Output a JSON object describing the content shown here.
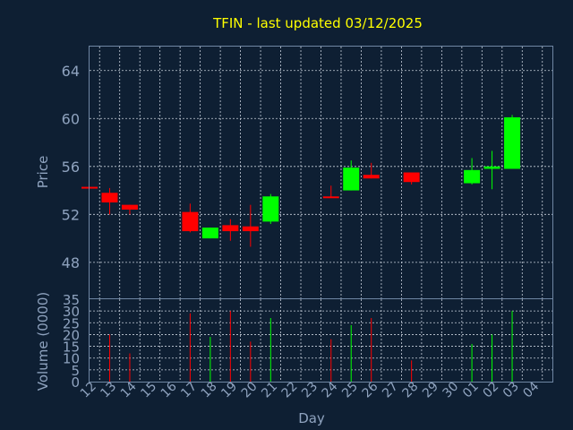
{
  "chart_data": {
    "type": "candlestick",
    "title": "TFIN - last updated 03/12/2025",
    "ylabel": "Price",
    "volume_label": "Volume (0000)",
    "xlabel": "Day",
    "price_ylim": [
      45,
      66
    ],
    "price_ticks": [
      48,
      52,
      56,
      60,
      64
    ],
    "volume_ylim": [
      0,
      35
    ],
    "volume_ticks": [
      0,
      5,
      10,
      15,
      20,
      25,
      30,
      35
    ],
    "grid": true,
    "colors": {
      "up": "#00ff00",
      "down": "#ff0000",
      "background": "#0e1f33",
      "title": "#ffff00",
      "text": "#8fa3bf"
    },
    "x_ticks": [
      "12",
      "13",
      "14",
      "15",
      "16",
      "17",
      "18",
      "19",
      "20",
      "21",
      "22",
      "23",
      "24",
      "25",
      "26",
      "27",
      "28",
      "29",
      "30",
      "01",
      "02",
      "03",
      "04"
    ],
    "candles": [
      {
        "day": "12",
        "open": 54.3,
        "high": 54.3,
        "low": 54.2,
        "close": 54.2,
        "volume": 0
      },
      {
        "day": "13",
        "open": 53.8,
        "high": 54.2,
        "low": 52.0,
        "close": 53.0,
        "volume": 20
      },
      {
        "day": "14",
        "open": 52.8,
        "high": 52.8,
        "low": 52.0,
        "close": 52.4,
        "volume": 12
      },
      {
        "day": "17",
        "open": 52.2,
        "high": 52.9,
        "low": 50.5,
        "close": 50.6,
        "volume": 29
      },
      {
        "day": "18",
        "open": 50.0,
        "high": 50.9,
        "low": 50.0,
        "close": 50.9,
        "volume": 19
      },
      {
        "day": "19",
        "open": 51.1,
        "high": 51.6,
        "low": 49.8,
        "close": 50.6,
        "volume": 30
      },
      {
        "day": "20",
        "open": 51.0,
        "high": 52.8,
        "low": 49.3,
        "close": 50.6,
        "volume": 17
      },
      {
        "day": "21",
        "open": 51.4,
        "high": 53.7,
        "low": 51.2,
        "close": 53.5,
        "volume": 27
      },
      {
        "day": "24",
        "open": 53.5,
        "high": 54.4,
        "low": 53.4,
        "close": 53.4,
        "volume": 18
      },
      {
        "day": "25",
        "open": 54.0,
        "high": 56.5,
        "low": 54.0,
        "close": 55.9,
        "volume": 24
      },
      {
        "day": "26",
        "open": 55.3,
        "high": 56.3,
        "low": 55.0,
        "close": 55.0,
        "volume": 27
      },
      {
        "day": "28",
        "open": 55.5,
        "high": 55.5,
        "low": 54.5,
        "close": 54.7,
        "volume": 9
      },
      {
        "day": "01",
        "open": 54.6,
        "high": 56.7,
        "low": 54.5,
        "close": 55.7,
        "volume": 16
      },
      {
        "day": "02",
        "open": 55.8,
        "high": 57.3,
        "low": 54.1,
        "close": 56.0,
        "volume": 20
      },
      {
        "day": "03",
        "open": 55.8,
        "high": 60.3,
        "low": 55.8,
        "close": 60.1,
        "volume": 30
      }
    ]
  }
}
